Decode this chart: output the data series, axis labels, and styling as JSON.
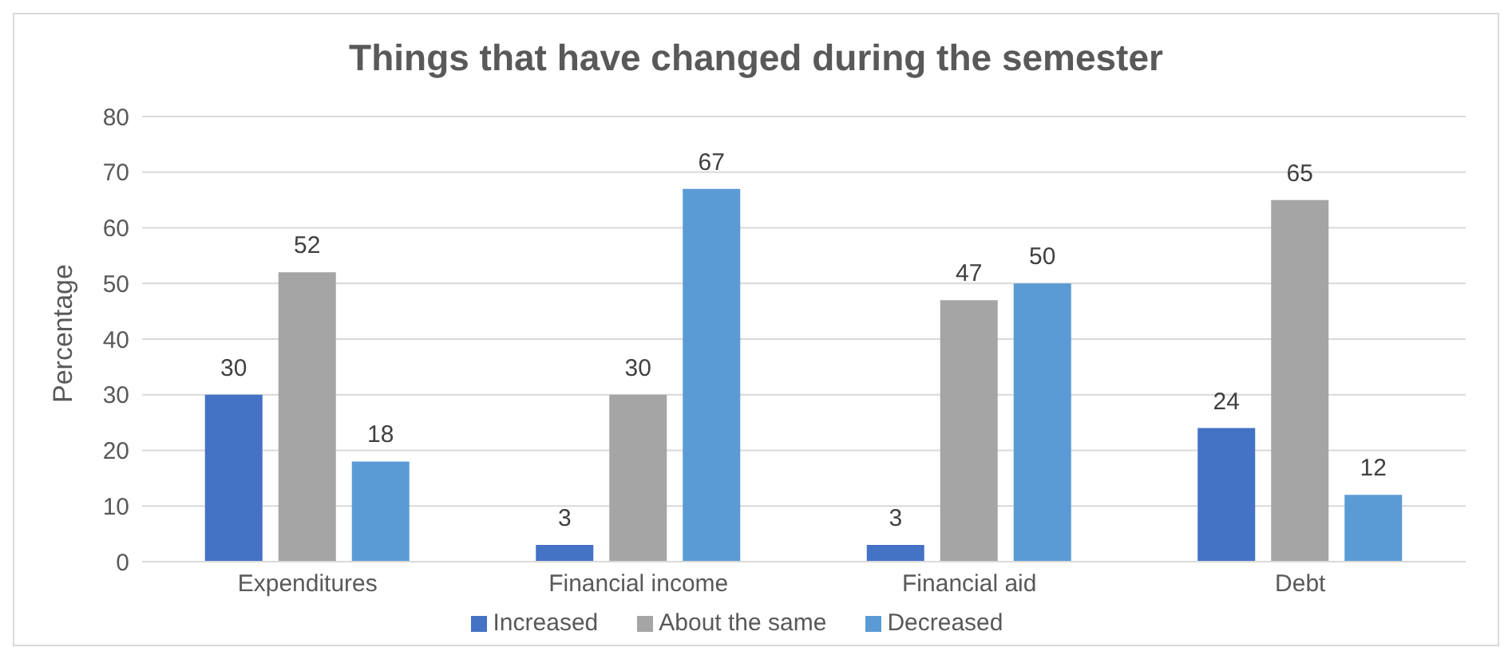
{
  "chart_data": {
    "type": "bar",
    "title": "Things that have changed during the semester",
    "ylabel": "Percentage",
    "categories": [
      "Expenditures",
      "Financial income",
      "Financial aid",
      "Debt"
    ],
    "series": [
      {
        "name": "Increased",
        "color": "#4472c4",
        "values": [
          30,
          3,
          3,
          24
        ]
      },
      {
        "name": "About the same",
        "color": "#a5a5a5",
        "values": [
          52,
          30,
          47,
          65
        ]
      },
      {
        "name": "Decreased",
        "color": "#5b9bd5",
        "values": [
          18,
          67,
          50,
          12
        ]
      }
    ],
    "ylim": [
      0,
      80
    ],
    "yticks": [
      0,
      10,
      20,
      30,
      40,
      50,
      60,
      70,
      80
    ],
    "grid": "y",
    "legend": "bottom",
    "data_labels": true
  }
}
